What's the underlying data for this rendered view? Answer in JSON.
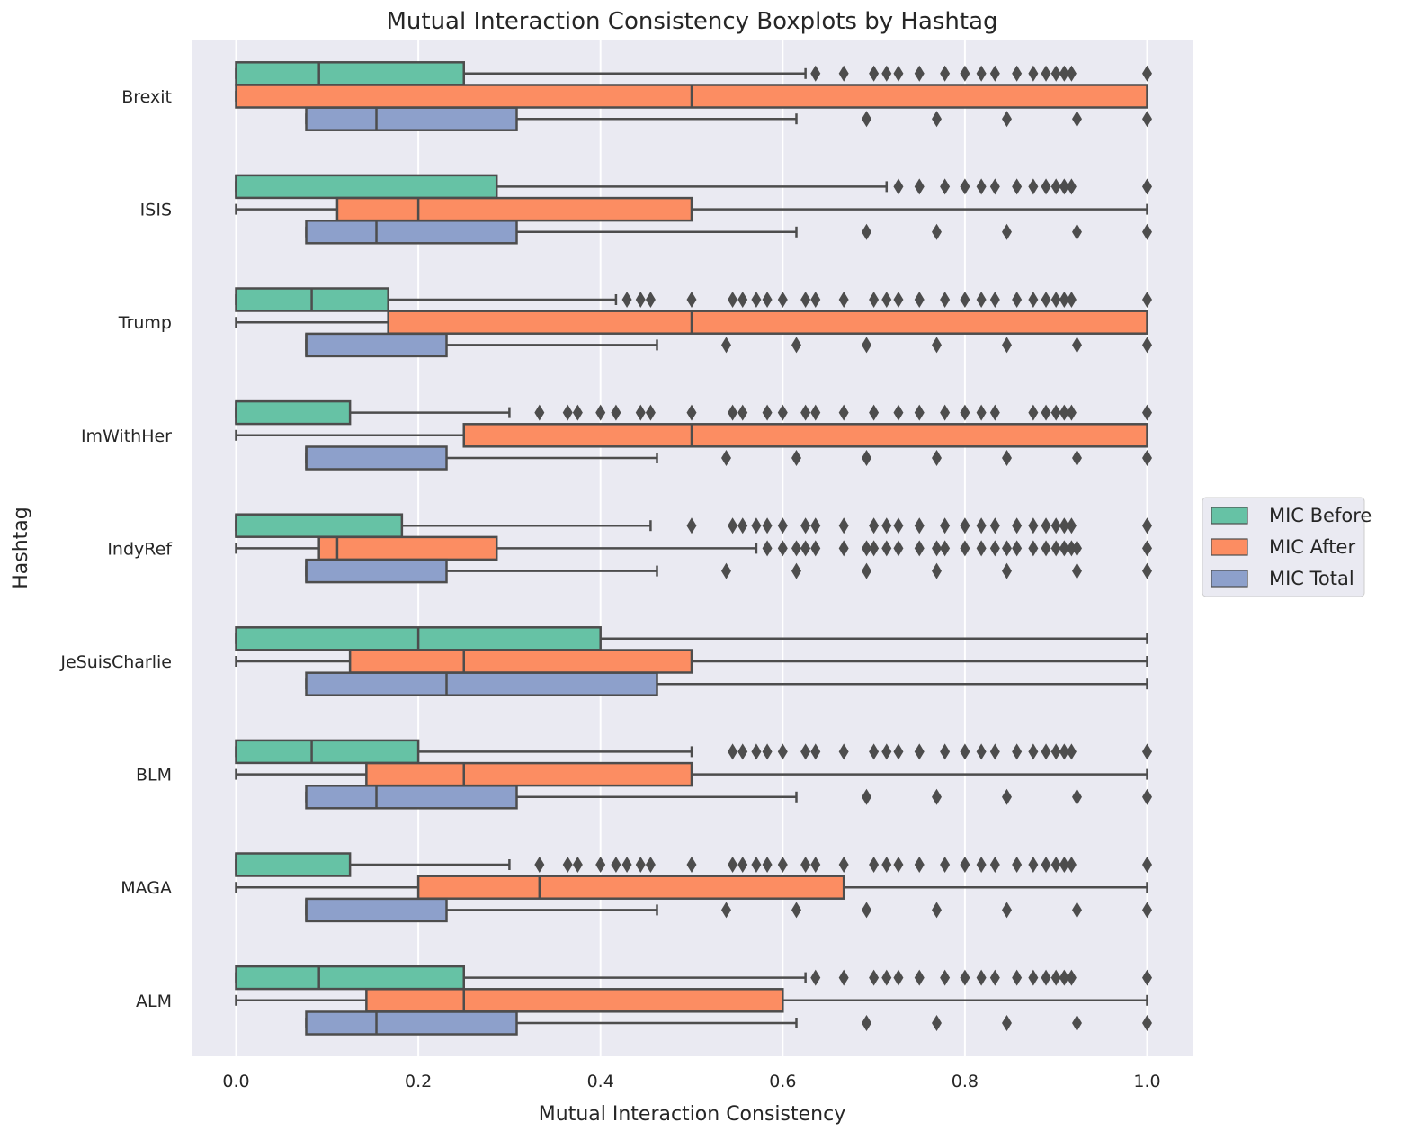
{
  "chart_data": {
    "type": "boxplot",
    "orientation": "horizontal",
    "title": "Mutual Interaction Consistency Boxplots by Hashtag",
    "xlabel": "Mutual Interaction Consistency",
    "ylabel": "Hashtag",
    "xlim": [
      -0.095,
      1.095
    ],
    "xticks": [
      0.0,
      0.2,
      0.4,
      0.6,
      0.8,
      1.0
    ],
    "xtick_labels": [
      "0.0",
      "0.2",
      "0.4",
      "0.6",
      "0.8",
      "1.0"
    ],
    "grid": true,
    "legend_position": "right, vertically centered",
    "colors": {
      "background": "#eaeaf2",
      "grid": "#ffffff",
      "box_edge": "#4d4d4d",
      "MIC Before": "#66c2a5",
      "MIC After": "#fc8d62",
      "MIC Total": "#8da0cb"
    },
    "series": [
      {
        "name": "MIC Before",
        "color": "#66c2a5"
      },
      {
        "name": "MIC After",
        "color": "#fc8d62"
      },
      {
        "name": "MIC Total",
        "color": "#8da0cb"
      }
    ],
    "categories": [
      "Brexit",
      "ISIS",
      "Trump",
      "ImWithHer",
      "IndyRef",
      "JeSuisCharlie",
      "BLM",
      "MAGA",
      "ALM"
    ],
    "boxes": {
      "Brexit": [
        {
          "whislo": 0.0,
          "q1": 0.0,
          "med": 0.091,
          "q3": 0.25,
          "whishi": 0.625,
          "fliers": [
            0.636,
            0.667,
            0.7,
            0.714,
            0.727,
            0.75,
            0.778,
            0.8,
            0.818,
            0.833,
            0.857,
            0.875,
            0.889,
            0.9,
            0.909,
            0.917,
            1.0
          ]
        },
        {
          "whislo": 0.0,
          "q1": 0.0,
          "med": 0.5,
          "q3": 1.0,
          "whishi": 1.0,
          "fliers": []
        },
        {
          "whislo": 0.077,
          "q1": 0.077,
          "med": 0.154,
          "q3": 0.308,
          "whishi": 0.615,
          "fliers": [
            0.692,
            0.769,
            0.846,
            0.923,
            1.0
          ]
        }
      ],
      "ISIS": [
        {
          "whislo": 0.0,
          "q1": 0.0,
          "med": 0.0,
          "q3": 0.286,
          "whishi": 0.714,
          "fliers": [
            0.727,
            0.75,
            0.778,
            0.8,
            0.818,
            0.833,
            0.857,
            0.875,
            0.889,
            0.9,
            0.909,
            0.917,
            1.0
          ]
        },
        {
          "whislo": 0.0,
          "q1": 0.111,
          "med": 0.2,
          "q3": 0.5,
          "whishi": 1.0,
          "fliers": []
        },
        {
          "whislo": 0.077,
          "q1": 0.077,
          "med": 0.154,
          "q3": 0.308,
          "whishi": 0.615,
          "fliers": [
            0.692,
            0.769,
            0.846,
            0.923,
            1.0
          ]
        }
      ],
      "Trump": [
        {
          "whislo": 0.0,
          "q1": 0.0,
          "med": 0.083,
          "q3": 0.167,
          "whishi": 0.417,
          "fliers": [
            0.429,
            0.444,
            0.455,
            0.5,
            0.545,
            0.556,
            0.571,
            0.583,
            0.6,
            0.625,
            0.636,
            0.667,
            0.7,
            0.714,
            0.727,
            0.75,
            0.778,
            0.8,
            0.818,
            0.833,
            0.857,
            0.875,
            0.889,
            0.9,
            0.909,
            0.917,
            1.0
          ]
        },
        {
          "whislo": 0.0,
          "q1": 0.167,
          "med": 0.5,
          "q3": 1.0,
          "whishi": 1.0,
          "fliers": []
        },
        {
          "whislo": 0.077,
          "q1": 0.077,
          "med": 0.077,
          "q3": 0.231,
          "whishi": 0.462,
          "fliers": [
            0.538,
            0.615,
            0.692,
            0.769,
            0.846,
            0.923,
            1.0
          ]
        }
      ],
      "ImWithHer": [
        {
          "whislo": 0.0,
          "q1": 0.0,
          "med": 0.0,
          "q3": 0.125,
          "whishi": 0.3,
          "fliers": [
            0.333,
            0.364,
            0.375,
            0.4,
            0.417,
            0.444,
            0.455,
            0.5,
            0.545,
            0.556,
            0.583,
            0.6,
            0.625,
            0.636,
            0.667,
            0.7,
            0.727,
            0.75,
            0.778,
            0.8,
            0.818,
            0.833,
            0.875,
            0.889,
            0.9,
            0.909,
            0.917,
            1.0
          ]
        },
        {
          "whislo": 0.0,
          "q1": 0.25,
          "med": 0.5,
          "q3": 1.0,
          "whishi": 1.0,
          "fliers": []
        },
        {
          "whislo": 0.077,
          "q1": 0.077,
          "med": 0.077,
          "q3": 0.231,
          "whishi": 0.462,
          "fliers": [
            0.538,
            0.615,
            0.692,
            0.769,
            0.846,
            0.923,
            1.0
          ]
        }
      ],
      "IndyRef": [
        {
          "whislo": 0.0,
          "q1": 0.0,
          "med": 0.0,
          "q3": 0.182,
          "whishi": 0.455,
          "fliers": [
            0.5,
            0.545,
            0.556,
            0.571,
            0.583,
            0.6,
            0.625,
            0.636,
            0.667,
            0.7,
            0.714,
            0.727,
            0.75,
            0.778,
            0.8,
            0.818,
            0.833,
            0.857,
            0.875,
            0.889,
            0.9,
            0.909,
            0.917,
            1.0
          ]
        },
        {
          "whislo": 0.0,
          "q1": 0.091,
          "med": 0.111,
          "q3": 0.286,
          "whishi": 0.571,
          "fliers": [
            0.583,
            0.6,
            0.615,
            0.625,
            0.636,
            0.667,
            0.692,
            0.7,
            0.714,
            0.727,
            0.75,
            0.769,
            0.778,
            0.8,
            0.818,
            0.833,
            0.846,
            0.857,
            0.875,
            0.889,
            0.9,
            0.909,
            0.917,
            0.923,
            1.0
          ]
        },
        {
          "whislo": 0.077,
          "q1": 0.077,
          "med": 0.077,
          "q3": 0.231,
          "whishi": 0.462,
          "fliers": [
            0.538,
            0.615,
            0.692,
            0.769,
            0.846,
            0.923,
            1.0
          ]
        }
      ],
      "JeSuisCharlie": [
        {
          "whislo": 0.0,
          "q1": 0.0,
          "med": 0.2,
          "q3": 0.4,
          "whishi": 1.0,
          "fliers": []
        },
        {
          "whislo": 0.0,
          "q1": 0.125,
          "med": 0.25,
          "q3": 0.5,
          "whishi": 1.0,
          "fliers": []
        },
        {
          "whislo": 0.077,
          "q1": 0.077,
          "med": 0.231,
          "q3": 0.462,
          "whishi": 1.0,
          "fliers": []
        }
      ],
      "BLM": [
        {
          "whislo": 0.0,
          "q1": 0.0,
          "med": 0.083,
          "q3": 0.2,
          "whishi": 0.5,
          "fliers": [
            0.545,
            0.556,
            0.571,
            0.583,
            0.6,
            0.625,
            0.636,
            0.667,
            0.7,
            0.714,
            0.727,
            0.75,
            0.778,
            0.8,
            0.818,
            0.833,
            0.857,
            0.875,
            0.889,
            0.9,
            0.909,
            0.917,
            1.0
          ]
        },
        {
          "whislo": 0.0,
          "q1": 0.143,
          "med": 0.25,
          "q3": 0.5,
          "whishi": 1.0,
          "fliers": []
        },
        {
          "whislo": 0.077,
          "q1": 0.077,
          "med": 0.154,
          "q3": 0.308,
          "whishi": 0.615,
          "fliers": [
            0.692,
            0.769,
            0.846,
            0.923,
            1.0
          ]
        }
      ],
      "MAGA": [
        {
          "whislo": 0.0,
          "q1": 0.0,
          "med": 0.0,
          "q3": 0.125,
          "whishi": 0.3,
          "fliers": [
            0.333,
            0.364,
            0.375,
            0.4,
            0.417,
            0.429,
            0.444,
            0.455,
            0.5,
            0.545,
            0.556,
            0.571,
            0.583,
            0.6,
            0.625,
            0.636,
            0.667,
            0.7,
            0.714,
            0.727,
            0.75,
            0.778,
            0.8,
            0.818,
            0.833,
            0.857,
            0.875,
            0.889,
            0.9,
            0.909,
            0.917,
            1.0
          ]
        },
        {
          "whislo": 0.0,
          "q1": 0.2,
          "med": 0.333,
          "q3": 0.667,
          "whishi": 1.0,
          "fliers": []
        },
        {
          "whislo": 0.077,
          "q1": 0.077,
          "med": 0.077,
          "q3": 0.231,
          "whishi": 0.462,
          "fliers": [
            0.538,
            0.615,
            0.692,
            0.769,
            0.846,
            0.923,
            1.0
          ]
        }
      ],
      "ALM": [
        {
          "whislo": 0.0,
          "q1": 0.0,
          "med": 0.091,
          "q3": 0.25,
          "whishi": 0.625,
          "fliers": [
            0.636,
            0.667,
            0.7,
            0.714,
            0.727,
            0.75,
            0.778,
            0.8,
            0.818,
            0.833,
            0.857,
            0.875,
            0.889,
            0.9,
            0.909,
            0.917,
            1.0
          ]
        },
        {
          "whislo": 0.0,
          "q1": 0.143,
          "med": 0.25,
          "q3": 0.6,
          "whishi": 1.0,
          "fliers": []
        },
        {
          "whislo": 0.077,
          "q1": 0.077,
          "med": 0.154,
          "q3": 0.308,
          "whishi": 0.615,
          "fliers": [
            0.692,
            0.769,
            0.846,
            0.923,
            1.0
          ]
        }
      ]
    }
  }
}
